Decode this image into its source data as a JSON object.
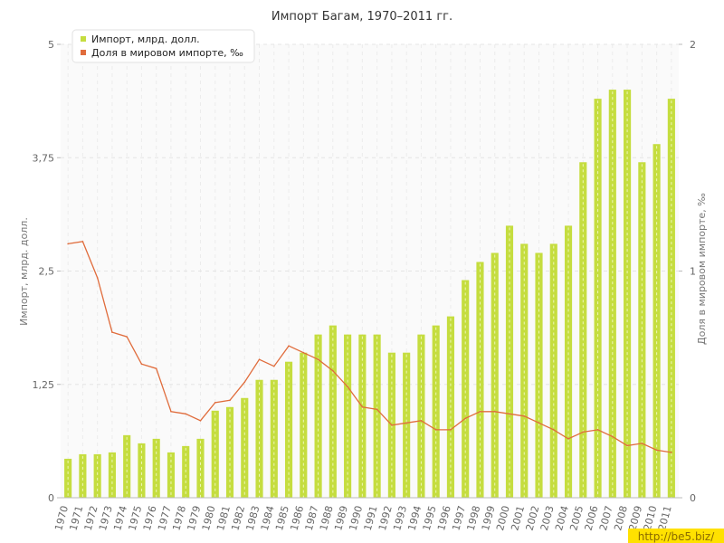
{
  "chart_data": {
    "type": "bar",
    "title": "Импорт Багам, 1970–2011 гг.",
    "xlabel": "",
    "ylabel": "Импорт, млрд. долл.",
    "y2label": "Доля в мировом импорте, ‰",
    "ylim": [
      0,
      5
    ],
    "y2lim": [
      0,
      2
    ],
    "yticks": [
      "0",
      "1,25",
      "2,5",
      "3,75",
      "5"
    ],
    "y2ticks": [
      "0",
      "1",
      "2"
    ],
    "grid": true,
    "legend_position": "top-left",
    "categories": [
      "1970",
      "1971",
      "1972",
      "1973",
      "1974",
      "1975",
      "1976",
      "1977",
      "1978",
      "1979",
      "1980",
      "1981",
      "1982",
      "1983",
      "1984",
      "1985",
      "1986",
      "1987",
      "1988",
      "1989",
      "1990",
      "1991",
      "1992",
      "1993",
      "1994",
      "1995",
      "1996",
      "1997",
      "1998",
      "1999",
      "2000",
      "2001",
      "2002",
      "2003",
      "2004",
      "2005",
      "2006",
      "2007",
      "2008",
      "2009",
      "2010",
      "2011"
    ],
    "series": [
      {
        "name": "Импорт, млрд. долл.",
        "type": "bar",
        "axis": "left",
        "color": "#c5dd3f",
        "values": [
          0.43,
          0.48,
          0.48,
          0.5,
          0.69,
          0.6,
          0.65,
          0.5,
          0.57,
          0.65,
          0.96,
          1.0,
          1.1,
          1.3,
          1.3,
          1.5,
          1.6,
          1.8,
          1.9,
          1.8,
          1.8,
          1.8,
          1.6,
          1.6,
          1.8,
          1.9,
          2.0,
          2.4,
          2.6,
          2.7,
          3.0,
          2.8,
          2.7,
          2.8,
          3.0,
          3.7,
          4.4,
          4.5,
          4.5,
          3.7,
          3.9,
          4.4
        ]
      },
      {
        "name": "Доля в мировом импорте, ‰",
        "type": "line",
        "axis": "right",
        "color": "#e06c3c",
        "values": [
          1.12,
          1.13,
          0.97,
          0.73,
          0.71,
          0.59,
          0.57,
          0.38,
          0.37,
          0.34,
          0.42,
          0.43,
          0.51,
          0.61,
          0.58,
          0.67,
          0.64,
          0.61,
          0.56,
          0.49,
          0.4,
          0.39,
          0.32,
          0.33,
          0.34,
          0.3,
          0.3,
          0.35,
          0.38,
          0.38,
          0.37,
          0.36,
          0.33,
          0.3,
          0.26,
          0.29,
          0.3,
          0.27,
          0.23,
          0.24,
          0.21,
          0.2
        ]
      }
    ]
  },
  "watermark": "http://be5.biz/"
}
